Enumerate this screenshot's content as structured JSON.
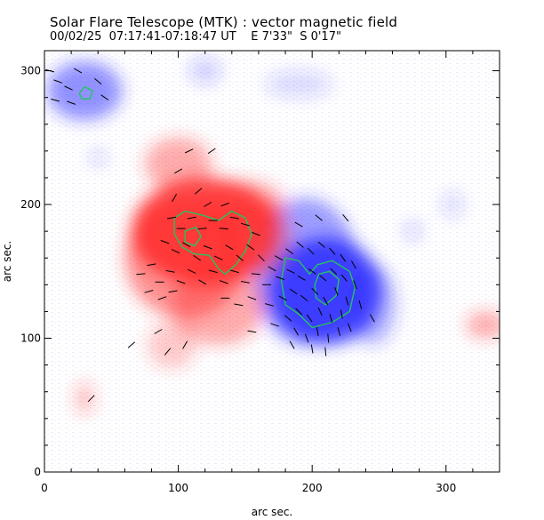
{
  "header": {
    "title": "Solar Flare Telescope (MTK) : vector magnetic field",
    "subtitle": "00/02/25  07:17:41-07:18:47 UT    E 7'33\"  S 0'17\""
  },
  "colors": {
    "positive_polarity": "#ff2a2a",
    "negative_polarity": "#2a2aff",
    "contour": "#22c55e",
    "background": "#ffffff"
  },
  "chart_data": {
    "type": "heatmap",
    "title": "Solar Flare Telescope (MTK) : vector magnetic field",
    "xlabel": "arc sec.",
    "ylabel": "arc sec.",
    "xlim": [
      0,
      340
    ],
    "ylim": [
      0,
      315
    ],
    "xticks": [
      0,
      100,
      200,
      300
    ],
    "yticks": [
      0,
      100,
      200,
      300
    ],
    "grid": false,
    "positive_regions": [
      {
        "x": 120,
        "y": 180,
        "rx": 55,
        "ry": 40,
        "strength": 1.0
      },
      {
        "x": 105,
        "y": 160,
        "rx": 45,
        "ry": 45,
        "strength": 0.6
      },
      {
        "x": 130,
        "y": 125,
        "rx": 35,
        "ry": 30,
        "strength": 0.45
      },
      {
        "x": 100,
        "y": 230,
        "rx": 25,
        "ry": 20,
        "strength": 0.45
      },
      {
        "x": 150,
        "y": 200,
        "rx": 30,
        "ry": 18,
        "strength": 0.4
      },
      {
        "x": 160,
        "y": 175,
        "rx": 25,
        "ry": 30,
        "strength": 0.35
      },
      {
        "x": 95,
        "y": 95,
        "rx": 18,
        "ry": 18,
        "strength": 0.3
      },
      {
        "x": 30,
        "y": 55,
        "rx": 7,
        "ry": 12,
        "strength": 0.35
      },
      {
        "x": 330,
        "y": 110,
        "rx": 15,
        "ry": 10,
        "strength": 0.45
      }
    ],
    "negative_regions": [
      {
        "x": 210,
        "y": 135,
        "rx": 42,
        "ry": 40,
        "strength": 1.0
      },
      {
        "x": 195,
        "y": 150,
        "rx": 40,
        "ry": 55,
        "strength": 0.55
      },
      {
        "x": 245,
        "y": 125,
        "rx": 18,
        "ry": 30,
        "strength": 0.4
      },
      {
        "x": 30,
        "y": 285,
        "rx": 28,
        "ry": 22,
        "strength": 0.6
      },
      {
        "x": 40,
        "y": 235,
        "rx": 6,
        "ry": 5,
        "strength": 0.3
      },
      {
        "x": 120,
        "y": 300,
        "rx": 12,
        "ry": 10,
        "strength": 0.25
      },
      {
        "x": 190,
        "y": 290,
        "rx": 25,
        "ry": 10,
        "strength": 0.2
      },
      {
        "x": 275,
        "y": 180,
        "rx": 6,
        "ry": 8,
        "strength": 0.25
      },
      {
        "x": 305,
        "y": 200,
        "rx": 8,
        "ry": 10,
        "strength": 0.2
      }
    ],
    "contours": [
      {
        "polarity": "positive",
        "points": [
          [
            97,
            190
          ],
          [
            105,
            195
          ],
          [
            118,
            192
          ],
          [
            130,
            188
          ],
          [
            140,
            195
          ],
          [
            150,
            190
          ],
          [
            155,
            178
          ],
          [
            150,
            165
          ],
          [
            143,
            155
          ],
          [
            135,
            148
          ],
          [
            130,
            152
          ],
          [
            123,
            162
          ],
          [
            112,
            163
          ],
          [
            103,
            168
          ],
          [
            97,
            178
          ]
        ]
      },
      {
        "polarity": "positive",
        "points": [
          [
            105,
            180
          ],
          [
            113,
            183
          ],
          [
            117,
            176
          ],
          [
            112,
            169
          ],
          [
            105,
            172
          ]
        ]
      },
      {
        "polarity": "negative",
        "points": [
          [
            180,
            160
          ],
          [
            190,
            158
          ],
          [
            198,
            148
          ],
          [
            204,
            155
          ],
          [
            215,
            158
          ],
          [
            228,
            150
          ],
          [
            232,
            138
          ],
          [
            228,
            120
          ],
          [
            215,
            112
          ],
          [
            200,
            108
          ],
          [
            190,
            118
          ],
          [
            180,
            125
          ],
          [
            177,
            143
          ]
        ]
      },
      {
        "polarity": "negative",
        "points": [
          [
            202,
            140
          ],
          [
            205,
            148
          ],
          [
            213,
            150
          ],
          [
            220,
            144
          ],
          [
            218,
            132
          ],
          [
            210,
            125
          ],
          [
            203,
            130
          ]
        ]
      },
      {
        "polarity": "negative",
        "points": [
          [
            26,
            283
          ],
          [
            30,
            288
          ],
          [
            36,
            285
          ],
          [
            34,
            279
          ],
          [
            28,
            279
          ]
        ]
      }
    ],
    "vectors": [
      {
        "x": 4,
        "y": 300,
        "a": -15
      },
      {
        "x": 10,
        "y": 292,
        "a": -20
      },
      {
        "x": 18,
        "y": 287,
        "a": -25
      },
      {
        "x": 8,
        "y": 278,
        "a": -15
      },
      {
        "x": 25,
        "y": 300,
        "a": -30
      },
      {
        "x": 40,
        "y": 292,
        "a": -40
      },
      {
        "x": 45,
        "y": 280,
        "a": -35
      },
      {
        "x": 20,
        "y": 276,
        "a": -20
      },
      {
        "x": 100,
        "y": 225,
        "a": 30
      },
      {
        "x": 108,
        "y": 240,
        "a": 25
      },
      {
        "x": 97,
        "y": 205,
        "a": 60
      },
      {
        "x": 115,
        "y": 210,
        "a": 40
      },
      {
        "x": 122,
        "y": 200,
        "a": 30
      },
      {
        "x": 135,
        "y": 200,
        "a": 20
      },
      {
        "x": 95,
        "y": 190,
        "a": 10
      },
      {
        "x": 102,
        "y": 182,
        "a": 0
      },
      {
        "x": 110,
        "y": 190,
        "a": 10
      },
      {
        "x": 118,
        "y": 182,
        "a": 5
      },
      {
        "x": 126,
        "y": 188,
        "a": 0
      },
      {
        "x": 134,
        "y": 182,
        "a": -5
      },
      {
        "x": 142,
        "y": 190,
        "a": -10
      },
      {
        "x": 150,
        "y": 185,
        "a": -15
      },
      {
        "x": 158,
        "y": 178,
        "a": -20
      },
      {
        "x": 90,
        "y": 172,
        "a": -20
      },
      {
        "x": 98,
        "y": 165,
        "a": -25
      },
      {
        "x": 106,
        "y": 170,
        "a": -30
      },
      {
        "x": 114,
        "y": 160,
        "a": -35
      },
      {
        "x": 122,
        "y": 168,
        "a": -20
      },
      {
        "x": 130,
        "y": 160,
        "a": -25
      },
      {
        "x": 138,
        "y": 168,
        "a": -30
      },
      {
        "x": 146,
        "y": 160,
        "a": -40
      },
      {
        "x": 154,
        "y": 168,
        "a": -35
      },
      {
        "x": 162,
        "y": 160,
        "a": -45
      },
      {
        "x": 170,
        "y": 152,
        "a": -30
      },
      {
        "x": 80,
        "y": 155,
        "a": 10
      },
      {
        "x": 72,
        "y": 148,
        "a": 5
      },
      {
        "x": 86,
        "y": 142,
        "a": 0
      },
      {
        "x": 94,
        "y": 150,
        "a": -10
      },
      {
        "x": 102,
        "y": 142,
        "a": -20
      },
      {
        "x": 110,
        "y": 150,
        "a": -25
      },
      {
        "x": 118,
        "y": 142,
        "a": -30
      },
      {
        "x": 126,
        "y": 150,
        "a": -15
      },
      {
        "x": 134,
        "y": 142,
        "a": -20
      },
      {
        "x": 142,
        "y": 150,
        "a": -15
      },
      {
        "x": 150,
        "y": 142,
        "a": -10
      },
      {
        "x": 158,
        "y": 148,
        "a": -5
      },
      {
        "x": 166,
        "y": 140,
        "a": 0
      },
      {
        "x": 78,
        "y": 135,
        "a": 15
      },
      {
        "x": 88,
        "y": 130,
        "a": 20
      },
      {
        "x": 96,
        "y": 135,
        "a": 10
      },
      {
        "x": 135,
        "y": 130,
        "a": 0
      },
      {
        "x": 145,
        "y": 125,
        "a": -10
      },
      {
        "x": 155,
        "y": 130,
        "a": -20
      },
      {
        "x": 65,
        "y": 95,
        "a": 40
      },
      {
        "x": 85,
        "y": 105,
        "a": 30
      },
      {
        "x": 92,
        "y": 90,
        "a": 50
      },
      {
        "x": 105,
        "y": 95,
        "a": 60
      },
      {
        "x": 155,
        "y": 105,
        "a": -10
      },
      {
        "x": 35,
        "y": 55,
        "a": 45
      },
      {
        "x": 125,
        "y": 240,
        "a": 35
      },
      {
        "x": 175,
        "y": 160,
        "a": -30
      },
      {
        "x": 183,
        "y": 165,
        "a": -35
      },
      {
        "x": 191,
        "y": 170,
        "a": -40
      },
      {
        "x": 199,
        "y": 165,
        "a": -45
      },
      {
        "x": 207,
        "y": 170,
        "a": -40
      },
      {
        "x": 215,
        "y": 165,
        "a": -50
      },
      {
        "x": 223,
        "y": 160,
        "a": -55
      },
      {
        "x": 231,
        "y": 155,
        "a": -60
      },
      {
        "x": 176,
        "y": 145,
        "a": -20
      },
      {
        "x": 184,
        "y": 150,
        "a": -25
      },
      {
        "x": 192,
        "y": 145,
        "a": -30
      },
      {
        "x": 200,
        "y": 150,
        "a": -35
      },
      {
        "x": 208,
        "y": 145,
        "a": -40
      },
      {
        "x": 216,
        "y": 150,
        "a": -45
      },
      {
        "x": 224,
        "y": 145,
        "a": -50
      },
      {
        "x": 178,
        "y": 130,
        "a": -30
      },
      {
        "x": 186,
        "y": 135,
        "a": -35
      },
      {
        "x": 194,
        "y": 130,
        "a": -40
      },
      {
        "x": 202,
        "y": 135,
        "a": -45
      },
      {
        "x": 210,
        "y": 128,
        "a": -60
      },
      {
        "x": 218,
        "y": 135,
        "a": -70
      },
      {
        "x": 226,
        "y": 128,
        "a": -75
      },
      {
        "x": 182,
        "y": 115,
        "a": -40
      },
      {
        "x": 190,
        "y": 120,
        "a": -45
      },
      {
        "x": 198,
        "y": 115,
        "a": -55
      },
      {
        "x": 206,
        "y": 120,
        "a": -65
      },
      {
        "x": 214,
        "y": 115,
        "a": -75
      },
      {
        "x": 222,
        "y": 118,
        "a": -80
      },
      {
        "x": 188,
        "y": 105,
        "a": -60
      },
      {
        "x": 196,
        "y": 100,
        "a": -70
      },
      {
        "x": 204,
        "y": 105,
        "a": -80
      },
      {
        "x": 212,
        "y": 100,
        "a": -85
      },
      {
        "x": 220,
        "y": 105,
        "a": -75
      },
      {
        "x": 228,
        "y": 108,
        "a": -70
      },
      {
        "x": 200,
        "y": 92,
        "a": -80
      },
      {
        "x": 210,
        "y": 90,
        "a": -85
      },
      {
        "x": 232,
        "y": 140,
        "a": -70
      },
      {
        "x": 236,
        "y": 125,
        "a": -75
      },
      {
        "x": 190,
        "y": 185,
        "a": -30
      },
      {
        "x": 205,
        "y": 190,
        "a": -40
      },
      {
        "x": 225,
        "y": 190,
        "a": -50
      },
      {
        "x": 185,
        "y": 95,
        "a": -60
      },
      {
        "x": 168,
        "y": 125,
        "a": -15
      },
      {
        "x": 172,
        "y": 110,
        "a": -20
      },
      {
        "x": 245,
        "y": 115,
        "a": -60
      }
    ]
  }
}
